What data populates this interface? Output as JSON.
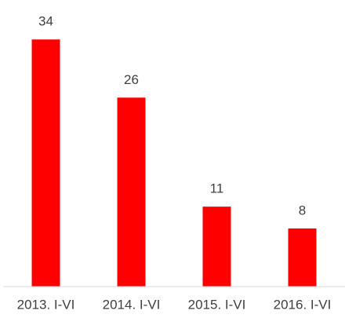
{
  "chart_data": {
    "type": "bar",
    "categories": [
      "2013. I-VI",
      "2014. I-VI",
      "2015. I-VI",
      "2016. I-VI"
    ],
    "values": [
      34,
      26,
      11,
      8
    ],
    "color": "#ff0000",
    "ylim": [
      0,
      35
    ],
    "data_labels": true
  }
}
